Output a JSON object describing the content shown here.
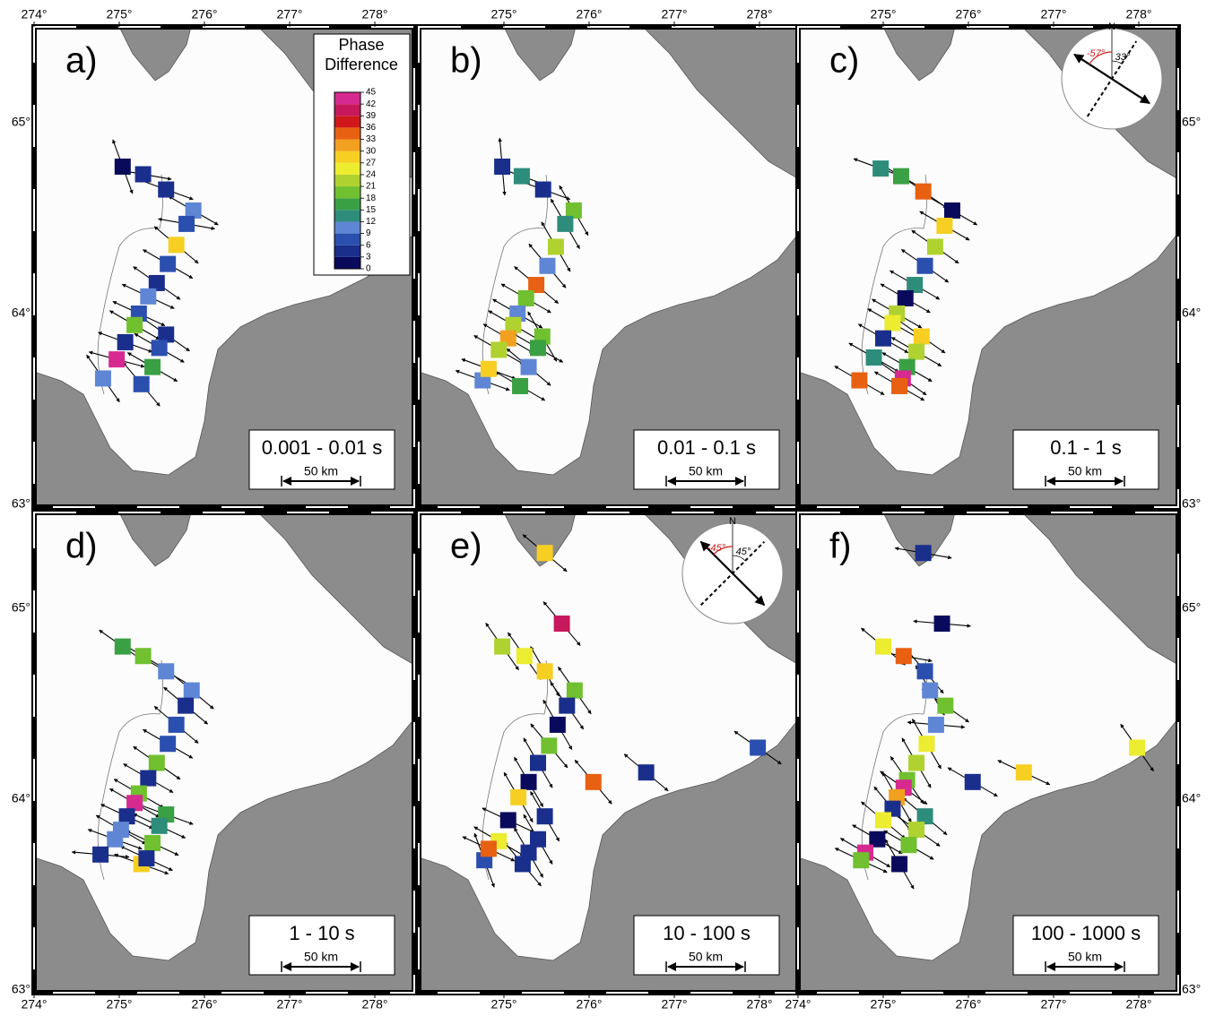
{
  "lon_ticks": [
    {
      "value": 274,
      "label": "274°"
    },
    {
      "value": 275,
      "label": "275°"
    },
    {
      "value": 276,
      "label": "276°"
    },
    {
      "value": 277,
      "label": "277°"
    },
    {
      "value": 278,
      "label": "278°"
    }
  ],
  "lat_ticks": [
    {
      "value": 63,
      "label": "63°"
    },
    {
      "value": 64,
      "label": "64°"
    },
    {
      "value": 65,
      "label": "65°"
    }
  ],
  "colorbar": {
    "title_lines": [
      "Phase",
      "Difference"
    ],
    "ticks": [
      0,
      3,
      6,
      9,
      12,
      15,
      18,
      21,
      24,
      27,
      30,
      33,
      36,
      39,
      42,
      45
    ],
    "colors": [
      "#0a0a5c",
      "#1a2e8c",
      "#2b4fae",
      "#5f86d4",
      "#2e8c7a",
      "#3aa044",
      "#70c030",
      "#b0d230",
      "#ecec30",
      "#f6cf22",
      "#f2a020",
      "#e86012",
      "#d0181c",
      "#c8185c",
      "#d62a90"
    ]
  },
  "panels": [
    {
      "label": "a)",
      "period": "0.001 - 0.01 s",
      "scale": "50 km",
      "stations": [
        [
          275.04,
          64.77,
          2,
          160
        ],
        [
          275.28,
          64.73,
          3,
          100
        ],
        [
          275.55,
          64.65,
          5,
          110
        ],
        [
          275.87,
          64.54,
          9,
          120
        ],
        [
          275.79,
          64.47,
          6,
          100
        ],
        [
          275.67,
          64.36,
          28,
          130
        ],
        [
          275.57,
          64.26,
          6,
          120
        ],
        [
          275.44,
          64.16,
          4,
          125
        ],
        [
          275.34,
          64.09,
          9,
          115
        ],
        [
          275.23,
          64.0,
          6,
          115
        ],
        [
          275.18,
          63.94,
          20,
          120
        ],
        [
          275.55,
          63.89,
          5,
          125
        ],
        [
          275.07,
          63.85,
          3,
          110
        ],
        [
          275.47,
          63.82,
          7,
          120
        ],
        [
          275.39,
          63.72,
          16,
          120
        ],
        [
          274.97,
          63.76,
          42,
          105
        ],
        [
          274.81,
          63.66,
          9,
          145
        ],
        [
          275.26,
          63.63,
          8,
          140
        ]
      ]
    },
    {
      "label": "b)",
      "period": "0.01 - 0.1 s",
      "scale": "50 km",
      "stations": [
        [
          274.98,
          64.77,
          5,
          175
        ],
        [
          275.21,
          64.72,
          13,
          110
        ],
        [
          275.46,
          64.65,
          5,
          110
        ],
        [
          275.82,
          64.54,
          20,
          150
        ],
        [
          275.72,
          64.47,
          14,
          150
        ],
        [
          275.61,
          64.35,
          21,
          150
        ],
        [
          275.51,
          64.25,
          9,
          140
        ],
        [
          275.38,
          64.15,
          33,
          130
        ],
        [
          275.26,
          64.08,
          19,
          120
        ],
        [
          275.16,
          64.0,
          9,
          120
        ],
        [
          275.11,
          63.94,
          22,
          120
        ],
        [
          275.45,
          63.88,
          18,
          150
        ],
        [
          275.05,
          63.87,
          30,
          120
        ],
        [
          274.94,
          63.81,
          22,
          120
        ],
        [
          275.4,
          63.82,
          15,
          120
        ],
        [
          275.29,
          63.72,
          11,
          130
        ],
        [
          275.19,
          63.62,
          17,
          120
        ],
        [
          274.75,
          63.65,
          9,
          110
        ],
        [
          274.82,
          63.71,
          27,
          110
        ]
      ]
    },
    {
      "label": "c)",
      "period": "0.1 - 1 s",
      "scale": "50 km",
      "compass": {
        "north": "N",
        "angles": [
          {
            "value": -57,
            "label": "-57°"
          },
          {
            "value": 33,
            "label": "33°"
          }
        ]
      },
      "stations": [
        [
          274.97,
          64.76,
          13,
          110
        ],
        [
          275.21,
          64.72,
          17,
          120
        ],
        [
          275.47,
          64.64,
          33,
          125
        ],
        [
          275.81,
          64.54,
          2,
          120
        ],
        [
          275.72,
          64.46,
          27,
          120
        ],
        [
          275.61,
          64.35,
          21,
          125
        ],
        [
          275.49,
          64.25,
          6,
          125
        ],
        [
          275.37,
          64.15,
          14,
          120
        ],
        [
          275.26,
          64.08,
          2,
          120
        ],
        [
          275.16,
          64.0,
          21,
          120
        ],
        [
          275.11,
          63.95,
          24,
          120
        ],
        [
          275.45,
          63.88,
          27,
          125
        ],
        [
          275.0,
          63.87,
          3,
          120
        ],
        [
          275.39,
          63.8,
          21,
          120
        ],
        [
          274.89,
          63.77,
          12,
          120
        ],
        [
          275.28,
          63.72,
          15,
          120
        ],
        [
          275.23,
          63.66,
          42,
          125
        ],
        [
          275.19,
          63.62,
          33,
          120
        ],
        [
          274.72,
          63.65,
          33,
          120
        ]
      ]
    },
    {
      "label": "d)",
      "period": "1 - 10 s",
      "scale": "50 km",
      "stations": [
        [
          275.04,
          64.8,
          16,
          125
        ],
        [
          275.28,
          64.75,
          20,
          120
        ],
        [
          275.55,
          64.67,
          9,
          120
        ],
        [
          275.85,
          64.57,
          9,
          130
        ],
        [
          275.78,
          64.49,
          5,
          130
        ],
        [
          275.67,
          64.39,
          6,
          130
        ],
        [
          275.57,
          64.29,
          8,
          120
        ],
        [
          275.44,
          64.19,
          19,
          125
        ],
        [
          275.34,
          64.11,
          3,
          120
        ],
        [
          275.23,
          64.03,
          20,
          120
        ],
        [
          275.18,
          63.98,
          42,
          120
        ],
        [
          275.55,
          63.92,
          16,
          110
        ],
        [
          275.09,
          63.91,
          5,
          115
        ],
        [
          275.47,
          63.86,
          14,
          115
        ],
        [
          275.02,
          63.84,
          9,
          120
        ],
        [
          275.39,
          63.77,
          18,
          115
        ],
        [
          274.95,
          63.79,
          9,
          110
        ],
        [
          274.78,
          63.71,
          5,
          95
        ],
        [
          275.26,
          63.66,
          27,
          110
        ],
        [
          275.32,
          63.69,
          5,
          115
        ]
      ]
    },
    {
      "label": "e)",
      "period": "10 - 100 s",
      "scale": "50 km",
      "compass": {
        "north": "N",
        "angles": [
          {
            "value": -45,
            "label": "-45°"
          },
          {
            "value": 45,
            "label": "45°"
          }
        ]
      },
      "stations": [
        [
          275.48,
          65.29,
          27,
          130
        ],
        [
          275.68,
          64.92,
          40,
          140
        ],
        [
          274.98,
          64.8,
          22,
          145
        ],
        [
          275.24,
          64.75,
          25,
          145
        ],
        [
          275.48,
          64.67,
          27,
          150
        ],
        [
          275.83,
          64.57,
          20,
          145
        ],
        [
          275.74,
          64.49,
          5,
          145
        ],
        [
          275.63,
          64.39,
          0,
          150
        ],
        [
          275.53,
          64.28,
          18,
          140
        ],
        [
          275.4,
          64.19,
          4,
          150
        ],
        [
          275.29,
          64.09,
          2,
          150
        ],
        [
          276.05,
          64.09,
          35,
          140
        ],
        [
          276.67,
          64.14,
          4,
          130
        ],
        [
          277.98,
          64.27,
          8,
          125
        ],
        [
          275.17,
          64.01,
          28,
          150
        ],
        [
          275.48,
          63.91,
          5,
          150
        ],
        [
          275.05,
          63.89,
          2,
          115
        ],
        [
          275.4,
          63.79,
          3,
          150
        ],
        [
          274.94,
          63.78,
          26,
          120
        ],
        [
          275.29,
          63.72,
          4,
          150
        ],
        [
          275.22,
          63.66,
          3,
          140
        ],
        [
          274.77,
          63.68,
          6,
          160
        ],
        [
          274.82,
          63.74,
          33,
          115
        ]
      ]
    },
    {
      "label": "f)",
      "period": "100 - 1000 s",
      "scale": "50 km",
      "stations": [
        [
          275.47,
          65.29,
          5,
          100
        ],
        [
          275.69,
          64.92,
          2,
          95
        ],
        [
          275.0,
          64.8,
          26,
          130
        ],
        [
          275.24,
          64.75,
          34,
          100
        ],
        [
          275.49,
          64.67,
          8,
          140
        ],
        [
          275.55,
          64.57,
          9,
          150
        ],
        [
          275.73,
          64.49,
          18,
          125
        ],
        [
          275.62,
          64.39,
          9,
          95
        ],
        [
          275.51,
          64.29,
          25,
          150
        ],
        [
          275.39,
          64.19,
          21,
          150
        ],
        [
          275.28,
          64.1,
          18,
          145
        ],
        [
          276.05,
          64.09,
          3,
          120
        ],
        [
          276.65,
          64.14,
          28,
          115
        ],
        [
          277.98,
          64.27,
          26,
          145
        ],
        [
          275.24,
          64.06,
          42,
          125
        ],
        [
          275.16,
          64.01,
          30,
          150
        ],
        [
          275.49,
          63.91,
          14,
          130
        ],
        [
          275.11,
          63.95,
          3,
          140
        ],
        [
          275.0,
          63.89,
          26,
          130
        ],
        [
          275.39,
          63.84,
          21,
          125
        ],
        [
          274.93,
          63.79,
          2,
          120
        ],
        [
          275.3,
          63.76,
          20,
          120
        ],
        [
          274.79,
          63.72,
          42,
          120
        ],
        [
          274.74,
          63.68,
          18,
          115
        ],
        [
          275.19,
          63.66,
          2,
          150
        ]
      ]
    }
  ]
}
